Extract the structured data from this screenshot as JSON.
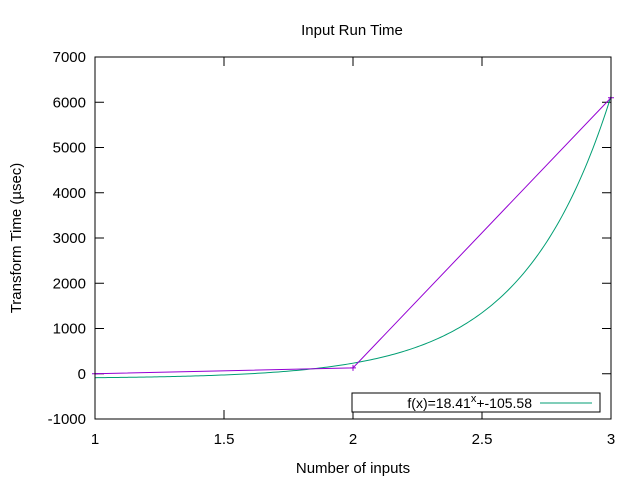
{
  "chart_data": {
    "type": "line",
    "title": "Input Run Time",
    "xlabel": "Number of inputs",
    "ylabel": "Transform Time (µsec)",
    "xlim": [
      1,
      3
    ],
    "ylim": [
      -1000,
      7000
    ],
    "xticks": [
      1,
      1.5,
      2,
      2.5,
      3
    ],
    "xtick_labels": [
      "1",
      "1.5",
      "2",
      "2.5",
      "3"
    ],
    "yticks": [
      -1000,
      0,
      1000,
      2000,
      3000,
      4000,
      5000,
      6000,
      7000
    ],
    "ytick_labels": [
      "-1000",
      "0",
      "1000",
      "2000",
      "3000",
      "4000",
      "5000",
      "6000",
      "7000"
    ],
    "grid": false,
    "legend_position": "bottom-right",
    "series": [
      {
        "kind": "data",
        "color": "#9400d3",
        "points": [
          [
            1,
            0
          ],
          [
            2,
            130
          ],
          [
            3,
            6100
          ]
        ]
      },
      {
        "kind": "fit",
        "name": "f(x)=18.41^x+-105.58",
        "legend_base": "f(x)=18.41",
        "legend_exp": "x",
        "legend_tail": "+-105.58",
        "color": "#009e73",
        "fit": {
          "base": 18.41,
          "offset": -105.58
        }
      }
    ]
  }
}
